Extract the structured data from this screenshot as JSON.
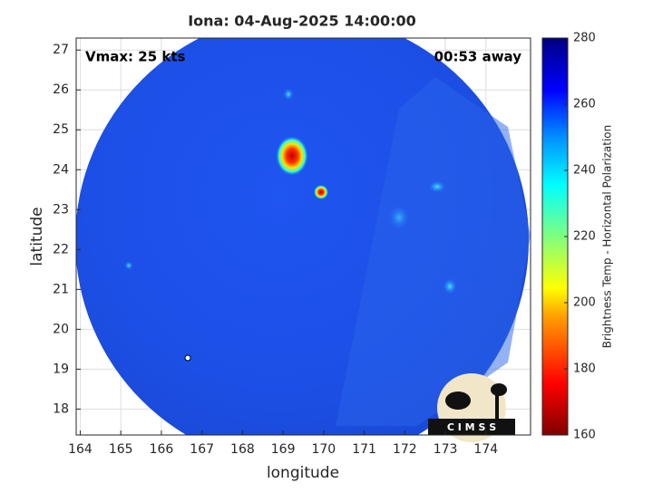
{
  "title": "Iona: 04-Aug-2025 14:00:00",
  "annotations": {
    "vmax": "Vmax: 25 kts",
    "time_away": "00:53 away"
  },
  "x_axis": {
    "label": "longitude",
    "lim": [
      163.9,
      175.1
    ],
    "ticks": [
      164,
      165,
      166,
      167,
      168,
      169,
      170,
      171,
      172,
      173,
      174
    ]
  },
  "y_axis": {
    "label": "latitude",
    "lim": [
      17.35,
      27.3
    ],
    "ticks": [
      18,
      19,
      20,
      21,
      22,
      23,
      24,
      25,
      26,
      27
    ]
  },
  "colorbar": {
    "label": "Brightness Temp - Horizontal Polarization",
    "lim": [
      160,
      280
    ],
    "ticks": [
      160,
      180,
      200,
      220,
      240,
      260,
      280
    ]
  },
  "logo": "C I M S S"
}
